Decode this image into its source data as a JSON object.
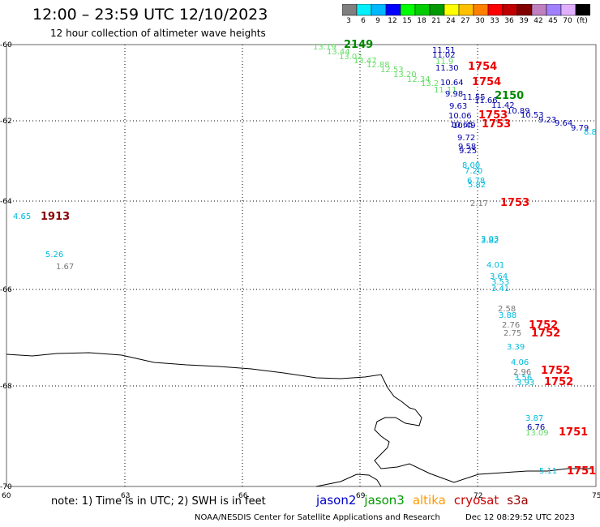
{
  "title": "12:00 – 23:59 UTC 12/10/2023",
  "subtitle": "12 hour collection of altimeter wave heights",
  "colorbar": {
    "labels": [
      "3",
      "6",
      "9",
      "12",
      "15",
      "18",
      "21",
      "24",
      "27",
      "30",
      "33",
      "36",
      "39",
      "42",
      "45",
      "70",
      "(ft)"
    ],
    "colors": [
      "#7f7f7f",
      "#00f0ff",
      "#00b8ff",
      "#0000ff",
      "#00ff00",
      "#00cc00",
      "#009900",
      "#ffff00",
      "#ffc000",
      "#ff8000",
      "#ff0000",
      "#c00000",
      "#800000",
      "#c080c0",
      "#a080ff",
      "#e0b0ff",
      "#000000"
    ]
  },
  "axes": {
    "x_ticks": [
      "60",
      "63",
      "66",
      "69",
      "72",
      "75"
    ],
    "y_ticks": [
      "-60",
      "-62",
      "-64",
      "-66",
      "-68",
      "-70"
    ]
  },
  "observations": [
    {
      "t": "13.19",
      "c": "#66dd66"
    },
    {
      "t": "2149",
      "c": "#008800",
      "time": true
    },
    {
      "t": "13.44",
      "c": "#66dd66"
    },
    {
      "t": "13.02",
      "c": "#66dd66"
    },
    {
      "t": "13.47",
      "c": "#66dd66"
    },
    {
      "t": "12.88",
      "c": "#66dd66"
    },
    {
      "t": "12.53",
      "c": "#66dd66"
    },
    {
      "t": "13.20",
      "c": "#66dd66"
    },
    {
      "t": "12.34",
      "c": "#66dd66"
    },
    {
      "t": "13.2",
      "c": "#66dd66"
    },
    {
      "t": "11.11",
      "c": "#66dd66"
    },
    {
      "t": "11.51",
      "c": "#0000aa"
    },
    {
      "t": "11.02",
      "c": "#0000aa"
    },
    {
      "t": "11.9",
      "c": "#66dd66"
    },
    {
      "t": "11.30",
      "c": "#0000aa"
    },
    {
      "t": "1754",
      "c": "#ee0000",
      "time": true
    },
    {
      "t": "10.64",
      "c": "#0000aa"
    },
    {
      "t": "1754",
      "c": "#ee0000",
      "time": true
    },
    {
      "t": "9.98",
      "c": "#0000aa"
    },
    {
      "t": "11.55",
      "c": "#0000aa"
    },
    {
      "t": "2150",
      "c": "#008800",
      "time": true
    },
    {
      "t": "11.66",
      "c": "#0000aa"
    },
    {
      "t": "11.42",
      "c": "#0000aa"
    },
    {
      "t": "9.63",
      "c": "#0000aa"
    },
    {
      "t": "10.89",
      "c": "#0000aa"
    },
    {
      "t": "10.53",
      "c": "#0000aa"
    },
    {
      "t": "10.06",
      "c": "#0000aa"
    },
    {
      "t": "1753",
      "c": "#ee0000",
      "time": true
    },
    {
      "t": "9.23",
      "c": "#0000aa"
    },
    {
      "t": "9.64",
      "c": "#0000aa"
    },
    {
      "t": "9.79",
      "c": "#0000aa"
    },
    {
      "t": "8.8",
      "c": "#00bbdd"
    },
    {
      "t": "10.65",
      "c": "#0000aa"
    },
    {
      "t": "10.49",
      "c": "#0000aa"
    },
    {
      "t": "1753",
      "c": "#ee0000",
      "time": true
    },
    {
      "t": "9.72",
      "c": "#0000aa"
    },
    {
      "t": "9.58",
      "c": "#0000aa"
    },
    {
      "t": "9.25",
      "c": "#0000aa"
    },
    {
      "t": "8.00",
      "c": "#00bbdd"
    },
    {
      "t": "7.20",
      "c": "#00bbdd"
    },
    {
      "t": "6.78",
      "c": "#00bbdd"
    },
    {
      "t": "5.82",
      "c": "#00bbdd"
    },
    {
      "t": "2.17",
      "c": "#777777"
    },
    {
      "t": "1753",
      "c": "#ee0000",
      "time": true
    },
    {
      "t": "4.65",
      "c": "#00bbdd"
    },
    {
      "t": "1913",
      "c": "#880000",
      "time": true
    },
    {
      "t": "5.26",
      "c": "#00bbdd"
    },
    {
      "t": "1.67",
      "c": "#777777"
    },
    {
      "t": "3.03",
      "c": "#00bbdd"
    },
    {
      "t": "3.82",
      "c": "#00bbdd"
    },
    {
      "t": "4.01",
      "c": "#00bbdd"
    },
    {
      "t": "3.64",
      "c": "#00bbdd"
    },
    {
      "t": "3.53",
      "c": "#00bbdd"
    },
    {
      "t": "3.41",
      "c": "#00bbdd"
    },
    {
      "t": "2.58",
      "c": "#777777"
    },
    {
      "t": "3.88",
      "c": "#00bbdd"
    },
    {
      "t": "2.76",
      "c": "#777777"
    },
    {
      "t": "1752",
      "c": "#ee0000",
      "time": true
    },
    {
      "t": "2.75",
      "c": "#777777"
    },
    {
      "t": "1752",
      "c": "#ee0000",
      "time": true
    },
    {
      "t": "3.39",
      "c": "#00bbdd"
    },
    {
      "t": "4.06",
      "c": "#00bbdd"
    },
    {
      "t": "2.96",
      "c": "#777777"
    },
    {
      "t": "1752",
      "c": "#ee0000",
      "time": true
    },
    {
      "t": "3.56",
      "c": "#00bbdd"
    },
    {
      "t": "3.93",
      "c": "#00bbdd"
    },
    {
      "t": "1752",
      "c": "#ee0000",
      "time": true
    },
    {
      "t": "3.87",
      "c": "#00bbdd"
    },
    {
      "t": "6.76",
      "c": "#0000aa"
    },
    {
      "t": "13.09",
      "c": "#66dd66"
    },
    {
      "t": "1751",
      "c": "#ee0000",
      "time": true
    },
    {
      "t": "5.11",
      "c": "#00bbdd"
    },
    {
      "t": "1751",
      "c": "#ee0000",
      "time": true
    }
  ],
  "note": "note: 1) Time is in UTC; 2) SWH is in feet",
  "satellites": [
    {
      "name": "jason2",
      "color": "#0000cc"
    },
    {
      "name": "jason3",
      "color": "#009900"
    },
    {
      "name": "altika",
      "color": "#ff9900"
    },
    {
      "name": "cryosat",
      "color": "#cc0000"
    },
    {
      "name": "s3a",
      "color": "#990000"
    }
  ],
  "footer": {
    "credit": "NOAA/NESDIS Center for Satellite Applications and Research",
    "timestamp": "Dec 12 08:29:52 UTC 2023"
  }
}
